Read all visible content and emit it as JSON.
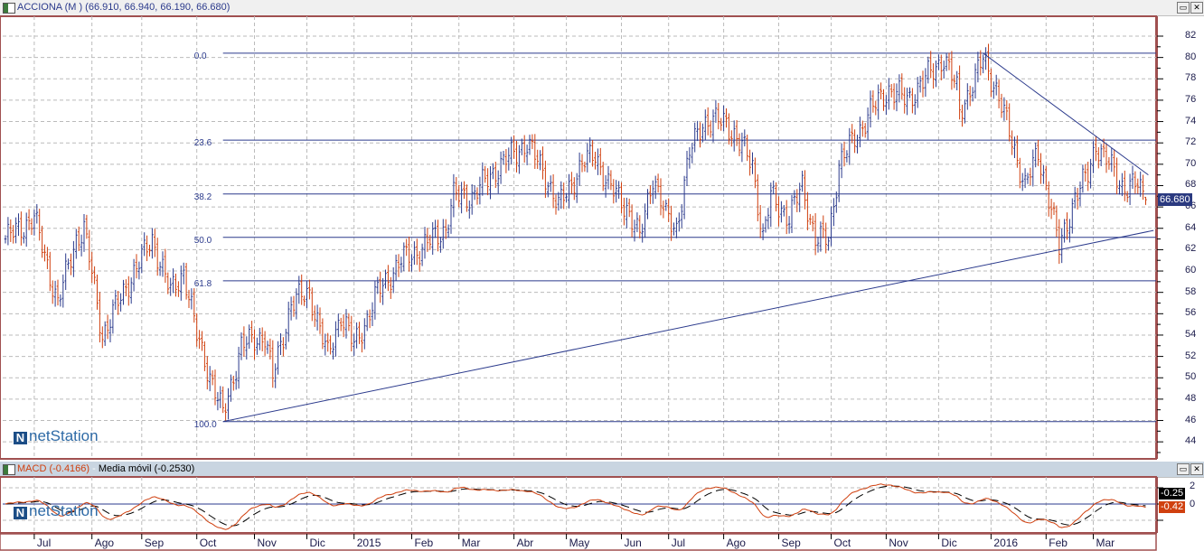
{
  "main_panel": {
    "title": "ACCIONA (M ) (66.910, 66.940, 66.190, 66.680)",
    "last_price": "66.680",
    "logo_text": "netStation",
    "buttons": {
      "restore": "▭",
      "close": "✕"
    }
  },
  "macd_panel": {
    "title_macd": "MACD (-0.4166)",
    "title_sep": " - ",
    "title_signal": "Media móvil (-0.2530)",
    "signal_tag": "-0.25",
    "macd_tag": "-0.42",
    "axis_labels": [
      "2",
      "0"
    ],
    "logo_text": "netStation",
    "buttons": {
      "restore": "▭",
      "close": "✕"
    }
  },
  "colors": {
    "up": "#2b3a8c",
    "down": "#d0400f",
    "line": "#2b3a8c",
    "border": "#a05050",
    "macd": "#d0400f",
    "signal": "#000000"
  },
  "chart_data": {
    "type": "ohlc",
    "title": "ACCIONA (M )",
    "last_ohlc": {
      "open": 66.91,
      "high": 66.94,
      "low": 66.19,
      "close": 66.68
    },
    "ylim": [
      43,
      83
    ],
    "y_ticks": [
      "44",
      "46",
      "48",
      "50",
      "52",
      "54",
      "56",
      "58",
      "60",
      "62",
      "64",
      "66",
      "68",
      "70",
      "72",
      "74",
      "76",
      "78",
      "80",
      "82"
    ],
    "x_days": 440,
    "x_ticks": [
      {
        "label": "Jul",
        "day": 11
      },
      {
        "label": "Ago",
        "day": 33
      },
      {
        "label": "Sep",
        "day": 52
      },
      {
        "label": "Oct",
        "day": 73
      },
      {
        "label": "Nov",
        "day": 95
      },
      {
        "label": "Dic",
        "day": 115
      },
      {
        "label": "2015",
        "day": 133
      },
      {
        "label": "Feb",
        "day": 155
      },
      {
        "label": "Mar",
        "day": 173
      },
      {
        "label": "Abr",
        "day": 194
      },
      {
        "label": "May",
        "day": 214
      },
      {
        "label": "Jun",
        "day": 235
      },
      {
        "label": "Jul",
        "day": 253
      },
      {
        "label": "Ago",
        "day": 274
      },
      {
        "label": "Sep",
        "day": 295
      },
      {
        "label": "Oct",
        "day": 315
      },
      {
        "label": "Nov",
        "day": 336
      },
      {
        "label": "Dic",
        "day": 356
      },
      {
        "label": "2016",
        "day": 376
      },
      {
        "label": "Feb",
        "day": 397
      },
      {
        "label": "Mar",
        "day": 415
      }
    ],
    "close_anchors": [
      [
        0,
        63
      ],
      [
        11,
        65
      ],
      [
        20,
        57
      ],
      [
        27,
        63
      ],
      [
        30,
        64
      ],
      [
        37,
        54
      ],
      [
        47,
        59
      ],
      [
        56,
        63
      ],
      [
        63,
        58
      ],
      [
        68,
        60
      ],
      [
        73,
        54
      ],
      [
        83,
        46.5
      ],
      [
        90,
        53
      ],
      [
        99,
        54
      ],
      [
        102,
        50
      ],
      [
        109,
        57
      ],
      [
        116,
        58
      ],
      [
        123,
        52
      ],
      [
        128,
        56
      ],
      [
        133,
        53
      ],
      [
        137,
        55
      ],
      [
        142,
        58
      ],
      [
        151,
        61
      ],
      [
        158,
        62
      ],
      [
        168,
        64
      ],
      [
        171,
        67
      ],
      [
        178,
        67
      ],
      [
        189,
        70
      ],
      [
        199,
        72
      ],
      [
        206,
        69
      ],
      [
        211,
        66
      ],
      [
        220,
        70
      ],
      [
        225,
        71
      ],
      [
        230,
        68
      ],
      [
        237,
        66
      ],
      [
        242,
        63
      ],
      [
        247,
        69
      ],
      [
        252,
        65
      ],
      [
        256,
        64
      ],
      [
        261,
        71
      ],
      [
        266,
        74
      ],
      [
        275,
        74
      ],
      [
        280,
        72
      ],
      [
        285,
        70
      ],
      [
        289,
        63
      ],
      [
        292,
        67
      ],
      [
        299,
        65
      ],
      [
        304,
        68
      ],
      [
        309,
        63
      ],
      [
        314,
        63
      ],
      [
        318,
        70
      ],
      [
        323,
        72
      ],
      [
        330,
        75
      ],
      [
        337,
        77
      ],
      [
        344,
        76
      ],
      [
        351,
        78
      ],
      [
        358,
        80
      ],
      [
        363,
        77
      ],
      [
        364,
        75
      ],
      [
        370,
        78
      ],
      [
        373,
        80
      ],
      [
        378,
        77
      ],
      [
        383,
        73
      ],
      [
        389,
        68
      ],
      [
        394,
        71
      ],
      [
        399,
        66
      ],
      [
        402,
        62
      ],
      [
        408,
        67
      ],
      [
        413,
        69
      ],
      [
        416,
        72
      ],
      [
        421,
        70
      ],
      [
        426,
        68
      ],
      [
        432,
        68
      ],
      [
        435,
        66.68
      ]
    ],
    "fibonacci": {
      "start_day": 83,
      "levels": [
        {
          "label": "0.0",
          "price": 80.4
        },
        {
          "label": "23.6",
          "price": 72.26
        },
        {
          "label": "38.2",
          "price": 67.22
        },
        {
          "label": "50.0",
          "price": 63.15
        },
        {
          "label": "61.8",
          "price": 59.08
        },
        {
          "label": "100.0",
          "price": 45.9
        }
      ]
    },
    "trendlines": [
      {
        "name": "support",
        "from": [
          83,
          45.9
        ],
        "to": [
          438,
          63.8
        ]
      },
      {
        "name": "resistance",
        "from": [
          373,
          80.4
        ],
        "to": [
          436,
          69.0
        ]
      }
    ],
    "macd": {
      "fast": 12,
      "slow": 26,
      "signal": 9,
      "ylim": [
        -3,
        3
      ],
      "last_macd": -0.4166,
      "last_signal": -0.253
    }
  }
}
